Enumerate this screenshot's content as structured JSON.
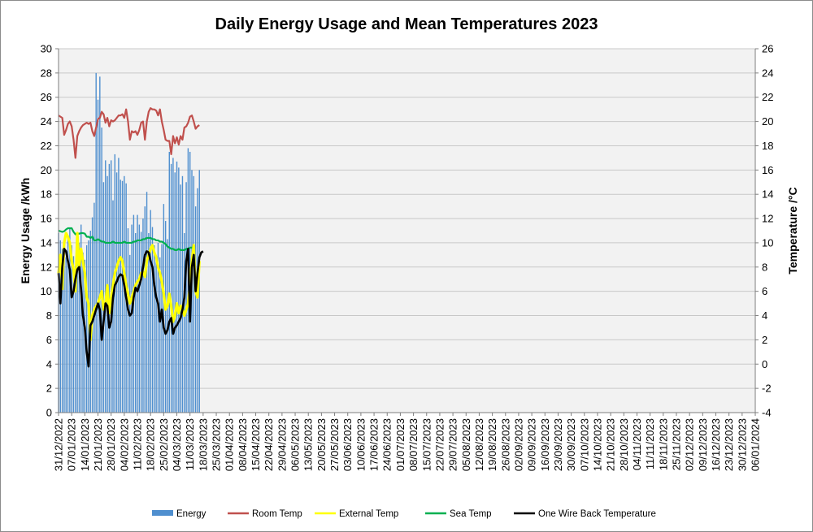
{
  "chart_data": {
    "type": "line",
    "title": "Daily Energy Usage and Mean Temperatures 2023",
    "ylabel": "Energy Usage /kWh",
    "y2label": "Temperature /°C",
    "ylim": [
      0,
      30
    ],
    "y2lim": [
      -4,
      26
    ],
    "yticks": [
      "0",
      "2",
      "4",
      "6",
      "8",
      "10",
      "12",
      "14",
      "16",
      "18",
      "20",
      "22",
      "24",
      "26",
      "28",
      "30"
    ],
    "y2ticks": [
      "-4",
      "-2",
      "0",
      "2",
      "4",
      "6",
      "8",
      "10",
      "12",
      "14",
      "16",
      "18",
      "20",
      "22",
      "24",
      "26"
    ],
    "x_tick_labels": [
      "31/12/2022",
      "07/01/2023",
      "14/01/2023",
      "21/01/2023",
      "28/01/2023",
      "04/02/2023",
      "11/02/2023",
      "18/02/2023",
      "25/02/2023",
      "04/03/2023",
      "11/03/2023",
      "18/03/2023",
      "25/03/2023",
      "01/04/2023",
      "08/04/2023",
      "15/04/2023",
      "22/04/2023",
      "29/04/2023",
      "06/05/2023",
      "13/05/2023",
      "20/05/2023",
      "27/05/2023",
      "03/06/2023",
      "10/06/2023",
      "17/06/2023",
      "24/06/2023",
      "01/07/2023",
      "08/07/2023",
      "15/07/2023",
      "22/07/2023",
      "29/07/2023",
      "05/08/2023",
      "12/08/2023",
      "19/08/2023",
      "26/08/2023",
      "02/09/2023",
      "09/09/2023",
      "16/09/2023",
      "23/09/2023",
      "30/09/2023",
      "07/10/2023",
      "14/10/2023",
      "21/10/2023",
      "28/10/2023",
      "04/11/2023",
      "11/11/2023",
      "18/11/2023",
      "25/11/2023",
      "02/12/2023",
      "09/12/2023",
      "16/12/2023",
      "23/12/2023",
      "30/12/2023",
      "06/01/2024"
    ],
    "x_day_range": [
      0,
      371
    ],
    "grid": true,
    "legend_position": "bottom",
    "series": [
      {
        "name": "Energy",
        "kind": "bar",
        "axis": "left",
        "color": "#4f8fcf",
        "values": [
          14.8,
          14.2,
          13.5,
          12.5,
          12.8,
          14.5,
          15.2,
          13.8,
          12.9,
          12.1,
          13.5,
          14.0,
          15.5,
          13.2,
          12.6,
          13.8,
          14.2,
          15.0,
          16.1,
          17.3,
          28.0,
          25.8,
          27.7,
          23.5,
          19.0,
          20.8,
          19.5,
          20.5,
          20.8,
          17.5,
          21.3,
          19.8,
          21.0,
          19.2,
          19.1,
          19.5,
          18.9,
          15.2,
          13.0,
          15.5,
          16.3,
          14.8,
          16.3,
          15.5,
          14.9,
          16.0,
          17.0,
          18.2,
          14.8,
          16.7,
          15.3,
          13.8,
          12.5,
          14.0,
          12.8,
          13.9,
          17.2,
          15.8,
          14.3,
          21.5,
          20.5,
          21.0,
          19.8,
          20.7,
          20.2,
          18.8,
          19.5,
          14.8,
          19.0,
          21.8,
          21.5,
          20.0,
          19.5,
          17.0,
          18.5,
          20.0
        ]
      },
      {
        "name": "Room Temp",
        "kind": "line",
        "axis": "right",
        "color": "#c0504d",
        "values": [
          20.5,
          20.4,
          20.3,
          18.9,
          19.3,
          19.8,
          20.0,
          19.6,
          18.5,
          17.0,
          18.8,
          19.2,
          19.5,
          19.7,
          19.8,
          19.9,
          19.8,
          19.9,
          19.2,
          18.8,
          19.5,
          20.2,
          20.3,
          20.8,
          20.6,
          19.9,
          20.3,
          19.6,
          20.1,
          20.0,
          20.1,
          20.3,
          20.5,
          20.5,
          20.6,
          20.3,
          21.0,
          20.0,
          18.5,
          19.2,
          19.1,
          19.2,
          18.9,
          19.3,
          19.9,
          20.0,
          18.5,
          20.0,
          20.8,
          21.1,
          21.0,
          21.0,
          20.9,
          20.5,
          21.0,
          20.0,
          19.3,
          18.5,
          18.4,
          18.4,
          17.3,
          18.8,
          18.2,
          18.7,
          18.1,
          18.8,
          18.5,
          19.5,
          19.6,
          19.9,
          20.4,
          20.5,
          20.0,
          19.4,
          19.6,
          19.7
        ]
      },
      {
        "name": "External Temp",
        "kind": "line",
        "axis": "right",
        "color": "#ffff00",
        "values": [
          7.5,
          9.0,
          6.2,
          10.0,
          10.8,
          10.5,
          10.0,
          8.5,
          7.8,
          6.0,
          10.8,
          8.0,
          9.5,
          8.5,
          7.5,
          5.5,
          5.0,
          2.0,
          4.0,
          4.5,
          4.8,
          5.0,
          5.5,
          6.0,
          4.5,
          5.0,
          6.5,
          4.2,
          5.5,
          6.5,
          7.5,
          8.0,
          8.5,
          8.8,
          8.5,
          7.5,
          6.5,
          5.8,
          5.0,
          5.5,
          6.0,
          6.5,
          6.8,
          7.0,
          7.5,
          7.6,
          7.2,
          8.5,
          9.0,
          9.5,
          9.8,
          9.2,
          8.8,
          8.0,
          7.5,
          6.8,
          5.8,
          4.5,
          4.8,
          5.8,
          4.8,
          3.5,
          4.0,
          5.0,
          4.2,
          4.8,
          4.5,
          4.0,
          4.5,
          5.0,
          6.5,
          8.5,
          9.8,
          6.0,
          5.5,
          8.5
        ]
      },
      {
        "name": "Sea Temp",
        "kind": "line",
        "axis": "right",
        "color": "#00b050",
        "values": [
          11.0,
          10.95,
          10.9,
          10.95,
          11.1,
          11.2,
          11.2,
          11.2,
          10.9,
          10.7,
          10.75,
          10.75,
          10.8,
          10.8,
          10.75,
          10.5,
          10.5,
          10.4,
          10.5,
          10.2,
          10.2,
          10.3,
          10.2,
          10.1,
          10.1,
          10.0,
          10.0,
          10.0,
          10.0,
          10.1,
          10.0,
          10.0,
          10.0,
          10.0,
          10.0,
          10.1,
          10.0,
          10.0,
          10.0,
          10.0,
          10.1,
          10.1,
          10.2,
          10.2,
          10.2,
          10.3,
          10.3,
          10.4,
          10.4,
          10.4,
          10.3,
          10.3,
          10.2,
          10.2,
          10.1,
          10.1,
          10.0,
          9.9,
          9.7,
          9.6,
          9.5,
          9.5,
          9.4,
          9.4,
          9.5,
          9.4,
          9.4,
          9.4,
          9.5,
          9.5,
          9.6,
          9.6,
          9.6
        ]
      },
      {
        "name": "One Wire Back Temperature",
        "kind": "line",
        "axis": "right",
        "color": "#000000",
        "values": [
          7.5,
          5.0,
          8.0,
          9.5,
          9.3,
          8.5,
          7.8,
          5.5,
          6.0,
          7.0,
          7.8,
          8.0,
          6.2,
          4.0,
          3.0,
          1.0,
          -0.2,
          3.2,
          3.5,
          4.0,
          4.5,
          5.0,
          4.5,
          2.0,
          3.5,
          5.0,
          4.8,
          3.0,
          3.5,
          5.5,
          6.5,
          6.8,
          7.2,
          7.4,
          7.3,
          6.5,
          5.5,
          4.5,
          4.0,
          4.2,
          5.5,
          6.3,
          6.0,
          6.5,
          7.0,
          8.0,
          9.0,
          9.3,
          9.2,
          8.5,
          8.0,
          6.5,
          5.5,
          5.0,
          3.5,
          4.5,
          3.0,
          2.5,
          2.8,
          3.5,
          3.8,
          2.5,
          3.0,
          3.2,
          3.5,
          3.8,
          4.5,
          5.5,
          8.5,
          9.5,
          3.5,
          8.0,
          9.0,
          6.0,
          7.5,
          8.8,
          9.2,
          9.3
        ]
      }
    ]
  }
}
